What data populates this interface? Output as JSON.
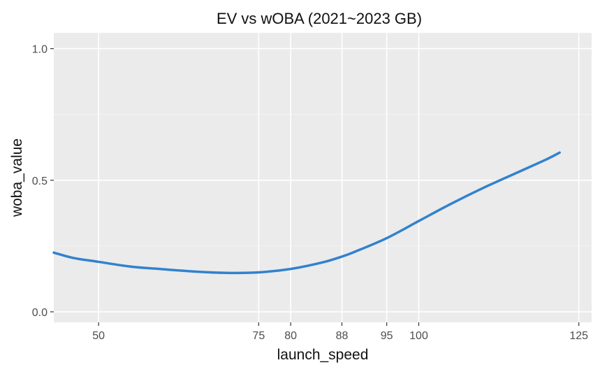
{
  "chart_data": {
    "type": "line",
    "title": "EV vs wOBA (2021~2023 GB)",
    "xlabel": "launch_speed",
    "ylabel": "woba_value",
    "xlim": [
      43,
      127
    ],
    "ylim": [
      -0.04,
      1.06
    ],
    "x_breaks": [
      50,
      75,
      80,
      88,
      95,
      100,
      125
    ],
    "y_breaks": [
      0.0,
      0.5,
      1.0
    ],
    "x_tick_labels": [
      "50",
      "75",
      "80",
      "88",
      "95",
      "100",
      "125"
    ],
    "y_tick_labels": [
      "0.0",
      "0.5",
      "1.0"
    ],
    "grid": true,
    "legend": "none",
    "line_color": "#3182cd",
    "panel_color": "#ebebeb",
    "series": [
      {
        "x": [
          43,
          46,
          50,
          55,
          60,
          65,
          70,
          75,
          80,
          85,
          88,
          90,
          95,
          100,
          105,
          110,
          115,
          120,
          122
        ],
        "y": [
          0.225,
          0.205,
          0.19,
          0.172,
          0.162,
          0.153,
          0.148,
          0.15,
          0.163,
          0.188,
          0.21,
          0.228,
          0.28,
          0.345,
          0.41,
          0.47,
          0.525,
          0.58,
          0.605
        ]
      }
    ]
  }
}
